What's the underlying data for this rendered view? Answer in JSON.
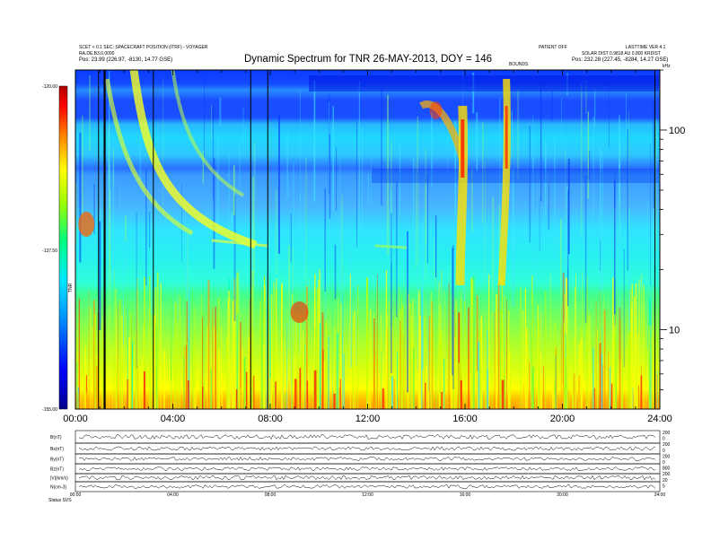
{
  "chart_data": {
    "type": "heatmap",
    "title": "Dynamic Spectrum for TNR 26-MAY-2013, DOY = 146",
    "header_left": [
      "SCET < 0.1 SEC: SPACECRAFT POSITION (ITRF) - VOYAGER",
      "RA.DE.B3.0.0000",
      "Pos:   23.99 (226.97, -8130, 14.77 GSE)"
    ],
    "header_right_top": [
      "PATIENT OFF",
      "LASTTIME VER 4.1"
    ],
    "header_right": [
      "SOLAR DIST 0.9818 AU 0.800 KRDIST",
      "Pos:   232.28 (227.45, -8284, 14.27 GSE)"
    ],
    "center_tag": "BOUNDS",
    "colorbar": {
      "label": "TNR",
      "tick_labels": [
        "-120.00",
        "-137.50",
        "-155.00"
      ],
      "range": [
        -155,
        -120
      ],
      "colors": [
        "#00008b",
        "#0000ff",
        "#0090ff",
        "#00e8ff",
        "#00ff80",
        "#a0ff00",
        "#ffff00",
        "#ff8000",
        "#ff0000",
        "#b00000"
      ]
    },
    "x_axis": {
      "range_hours": [
        0,
        24
      ],
      "tick_labels": [
        "00:00",
        "04:00",
        "08:00",
        "12:00",
        "16:00",
        "20:00",
        "24:00"
      ]
    },
    "y_axis_right": {
      "scale": "log",
      "range_khz": [
        4,
        200
      ],
      "tick_labels": [
        "100",
        "10"
      ],
      "top_label": "kHz"
    },
    "vertical_markers_hours": [
      0.95,
      1.2,
      3.2,
      7.2,
      7.9,
      23.8
    ],
    "features": [
      {
        "type": "type3_burst",
        "start_hour": 2.4,
        "end_hour": 7.4
      },
      {
        "type": "type3_burst",
        "start_hour": 1.1,
        "end_hour": 4.8
      },
      {
        "type": "drifting_band",
        "start_hour": 14.2,
        "end_hour": 17.9
      },
      {
        "type": "vertical_emission",
        "hour": 15.9
      },
      {
        "type": "vertical_emission",
        "hour": 17.7
      }
    ],
    "lower_panels": {
      "labels": [
        "B(nT)",
        "Bx(nT)",
        "By(nT)",
        "Bz(nT)",
        "|V|(km/s)",
        "N(cm-3)"
      ],
      "right_scale_labels": [
        "200",
        "0",
        "200",
        "0",
        "200",
        "0",
        "800",
        "200",
        "20",
        "5"
      ],
      "x_tick_labels": [
        "00:00",
        "04:00",
        "08:00",
        "12:00",
        "16:00",
        "20:00",
        "24:00"
      ],
      "footer_label": "Status  SVS"
    }
  }
}
